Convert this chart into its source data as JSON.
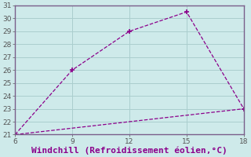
{
  "x_upper": [
    6,
    9,
    12,
    15,
    18
  ],
  "y_upper": [
    21,
    26,
    29,
    30.5,
    23
  ],
  "x_lower": [
    6,
    9,
    12,
    15,
    18
  ],
  "y_lower": [
    21,
    21.5,
    22,
    22.5,
    23
  ],
  "line_color": "#8B008B",
  "marker": "+",
  "marker_size": 5,
  "marker_upper_only": true,
  "xlabel": "Windchill (Refroidissement éolien,°C)",
  "xlabel_color": "#8B008B",
  "xlabel_fontsize": 8,
  "xlim": [
    6,
    18
  ],
  "ylim": [
    21,
    31
  ],
  "xticks": [
    6,
    9,
    12,
    15,
    18
  ],
  "yticks": [
    21,
    22,
    23,
    24,
    25,
    26,
    27,
    28,
    29,
    30,
    31
  ],
  "tick_fontsize": 6.5,
  "bg_color": "#ceeaea",
  "grid_color": "#aacece",
  "spine_color": "#7a5f8a",
  "line_style": "--",
  "linewidth": 0.9
}
